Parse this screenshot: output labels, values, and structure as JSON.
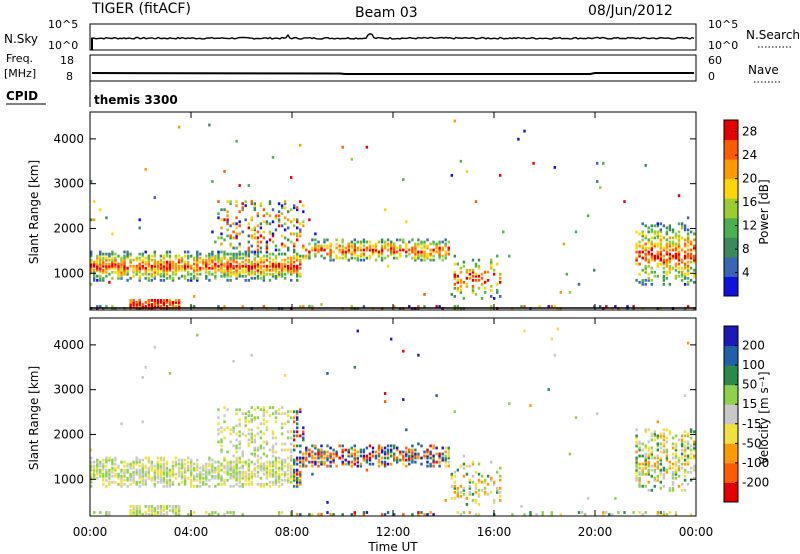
{
  "header": {
    "radar": "TIGER (fitACF)",
    "beam": "Beam 03",
    "date": "08/Jun/2012"
  },
  "nsky_panel": {
    "left_label": "N.Sky",
    "left_ticks": [
      "10^5",
      "10^0"
    ],
    "right_label": "N.Search",
    "right_ticks": [
      "10^5",
      "10^0"
    ]
  },
  "freq_panel": {
    "left_label_top": "Freq.",
    "left_label_unit": "[MHz]",
    "left_ticks": [
      "18",
      "8"
    ],
    "right_label": "Nave",
    "right_ticks": [
      "60",
      "0"
    ]
  },
  "cpid_panel": {
    "label": "CPID",
    "value": "themis 3300"
  },
  "x_axis": {
    "label": "Time UT",
    "ticks": [
      "00:00",
      "04:00",
      "08:00",
      "12:00",
      "16:00",
      "20:00",
      "00:00"
    ]
  },
  "chart_data": [
    {
      "type": "heatmap",
      "title": "",
      "xlabel": "Time UT",
      "ylabel": "Slant Range [km]",
      "x_ticks": [
        "00:00",
        "04:00",
        "08:00",
        "12:00",
        "16:00",
        "20:00",
        "00:00"
      ],
      "xlim_hours": [
        0,
        24
      ],
      "y_ticks": [
        1000,
        2000,
        3000,
        4000
      ],
      "ylim": [
        180,
        4600
      ],
      "colorbar": {
        "label": "Power [dB]",
        "ticks": [
          4,
          8,
          12,
          16,
          20,
          24,
          28
        ],
        "range": [
          0,
          30
        ],
        "colors": [
          "#1010e0",
          "#3a64b4",
          "#3c8a5a",
          "#4caf50",
          "#9acd32",
          "#ffd700",
          "#ff9900",
          "#ff5a00",
          "#e60000"
        ]
      }
    },
    {
      "type": "heatmap",
      "title": "",
      "xlabel": "Time UT",
      "ylabel": "Slant Range [km]",
      "x_ticks": [
        "00:00",
        "04:00",
        "08:00",
        "12:00",
        "16:00",
        "20:00",
        "00:00"
      ],
      "xlim_hours": [
        0,
        24
      ],
      "y_ticks": [
        1000,
        2000,
        3000,
        4000
      ],
      "ylim": [
        180,
        4600
      ],
      "colorbar": {
        "label": "Velocity [m s⁻¹]",
        "ticks": [
          200,
          100,
          50,
          15,
          -15,
          -50,
          -100,
          -200
        ],
        "colors": [
          "#1a1ab8",
          "#2060a8",
          "#2a8a4a",
          "#8ed24a",
          "#c8c8c8",
          "#f0e040",
          "#ff9900",
          "#ff5a00",
          "#e60000"
        ]
      }
    }
  ]
}
